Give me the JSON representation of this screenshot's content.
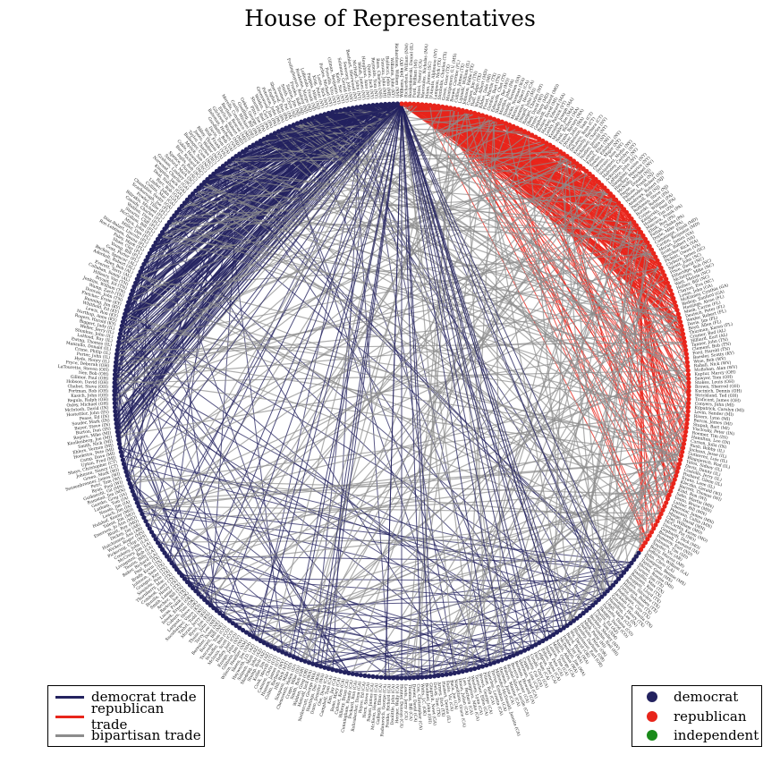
{
  "title": "House of Representatives",
  "colors": {
    "democrat": "#23225f",
    "republican": "#e8251b",
    "independent": "#1a8a1a",
    "bipartisan": "#8c8c8c",
    "label": "#222222"
  },
  "legend_trades": [
    {
      "label": "democrat trade",
      "color": "#23225f"
    },
    {
      "label": "republican trade",
      "color": "#e8251b"
    },
    {
      "label": "bipartisan trade",
      "color": "#8c8c8c"
    }
  ],
  "legend_parties": [
    {
      "label": "democrat",
      "color": "#23225f"
    },
    {
      "label": "republican",
      "color": "#e8251b"
    },
    {
      "label": "independent",
      "color": "#1a8a1a"
    }
  ],
  "node_labels": [
    "Williams, John (KY)",
    "Richardson, William (NM)",
    "Roskenkowski, Daniel (IL)",
    "Ford, William (MI)",
    "Pelosi, Nancy (CA)",
    "Mavroules, Nicholas (MA)",
    "Mann, James (SC)",
    "D'Amato, Alphonse (NY)",
    "Lampson, Nick (TX)",
    "Stenholm, Charles (TX)",
    "Green, Gene (TX)",
    "Montgomery, G.V. (MS)",
    "Brown, Corrine (FL)",
    "Collins, James (TX)",
    "Lipinski, William (IL)",
    "Johnson, Eddie (TX)",
    "Cooper, Jim (TN)",
    "Hall, Ralph (TX)",
    "Wynn, Albert (MD)",
    "Kildee, Dale (MI)",
    "Frost, Martin (TX)",
    "Gordon, Bart (TN)",
    "Edwards, Chet (TX)",
    "Skelton, Ike (MO)",
    "Murtha, John (PA)",
    "Sisisky, Norman (VA)",
    "Dicks, Norman (WA)",
    "Matsui, Robert (CA)",
    "Waxman, Henry (CA)",
    "Dingell, John (MI)",
    "Rangel, Charles (NY)",
    "Obey, David (WI)",
    "Hoyer, Steny (MD)",
    "Gephardt, Richard (MO)",
    "Bonior, David (MI)",
    "Markey, Edward (MA)",
    "Leahy, Patrick (VT)",
    "Kennedy, Joseph (MA)",
    "Moakley, Joe (MA)",
    "Neal, Richard (MA)",
    "Frank, Barney (MA)",
    "Olver, John (MA)",
    "Gejdenson, Sam (CT)",
    "DeLauro, Rosa (CT)",
    "Kennelly, Barbara (CT)",
    "Schumer, Charles (NY)",
    "Nadler, Jerrold (NY)",
    "Lowey, Nita (NY)",
    "Engel, Eliot (NY)",
    "Towns, Edolphus (NY)",
    "Owens, Major (NY)",
    "Serrano, Jose (NY)",
    "Velazquez, Nydia (NY)",
    "Maloney, Carolyn (NY)",
    "Ackerman, Gary (NY)",
    "LaFalce, John (NY)",
    "Slaughter, Louise (NY)",
    "Hinchey, Maurice (NY)",
    "McNulty, Michael (NY)",
    "Payne, Donald (NJ)",
    "Pallone, Frank (NJ)",
    "Menendez, Robert (NJ)",
    "Andrews, Robert (NJ)",
    "Pascrell, Bill (NJ)",
    "Rothman, Steve (NJ)",
    "Borski, Robert (PA)",
    "Coyne, William (PA)",
    "Kanjorski, Paul (PA)",
    "Holden, Tim (PA)",
    "Mascara, Frank (PA)",
    "Klink, Ron (PA)",
    "Fattah, Chaka (PA)",
    "Doyle, Mike (PA)",
    "Cummings, Elijah (MD)",
    "Cardin, Benjamin (MD)",
    "Moran, James (VA)",
    "Scott, Robert (VA)",
    "Boucher, Rick (VA)",
    "Pickett, Owen (VA)",
    "Clyburn, James (SC)",
    "Spratt, John (SC)",
    "Price, David (NC)",
    "Etheridge, Bob (NC)",
    "McIntyre, Mike (NC)",
    "Watt, Melvin (NC)",
    "Hefner, Bill (NC)",
    "Clayton, Eva (NC)",
    "Lewis, John (GA)",
    "McKinney, Cynthia (GA)",
    "Bishop, Sanford (GA)",
    "Hastings, Alcee (FL)",
    "Meek, Carrie (FL)",
    "Deutsch, Peter (FL)",
    "Wexler, Robert (FL)",
    "Davis, Jim (FL)",
    "Boyd, Allen (FL)",
    "Thurman, Karen (FL)",
    "Cramer, Bud (AL)",
    "Hilliard, Earl (AL)",
    "Tanner, John (TN)",
    "Clement, Bob (TN)",
    "Ford, Harold (TN)",
    "Baesler, Scotty (KY)",
    "Wise, Bob (WV)",
    "Rahall, Nick (WV)",
    "Mollohan, Alan (WV)",
    "Kaptur, Marcy (OH)",
    "Sawyer, Tom (OH)",
    "Stokes, Louis (OH)",
    "Brown, Sherrod (OH)",
    "Kucinich, Dennis (OH)",
    "Strickland, Ted (OH)",
    "Traficant, James (OH)",
    "Conyers, John (MI)",
    "Kilpatrick, Carolyn (MI)",
    "Levin, Sander (MI)",
    "Rivers, Lynn (MI)",
    "Barcia, James (MI)",
    "Stupak, Bart (MI)",
    "Visclosky, Peter (IN)",
    "Roemer, Tim (IN)",
    "Hamilton, Lee (IN)",
    "Carson, Julia (IN)",
    "Rush, Bobby (IL)",
    "Jackson, Jesse (IL)",
    "Gutierrez, Luis (IL)",
    "Blagojevich, Rod (IL)",
    "Yates, Sidney (IL)",
    "Davis, Danny (IL)",
    "Costello, Jerry (IL)",
    "Poshard, Glenn (IL)",
    "Evans, Lane (IL)",
    "Kleczka, Gerald (WI)",
    "Barrett, Thomas (WI)",
    "Kind, Ron (WI)",
    "Sabo, Martin (MN)",
    "Vento, Bruce (MN)",
    "Luther, Bill (MN)",
    "Oberstar, James (MN)",
    "Peterson, Collin (MN)",
    "Minge, David (MN)",
    "Clay, William (MO)",
    "McCarthy, Karen (MO)",
    "Danner, Pat (MO)",
    "Gephardt, Dick (MO)",
    "Boswell, Leonard (IA)",
    "Pomeroy, Earl (ND)",
    "Johnson, Tim (SD)",
    "Snyder, Vic (AR)",
    "Berry, Marion (AR)",
    "Jefferson, William (LA)",
    "John, Chris (LA)",
    "Thompson, Bennie (MS)",
    "Taylor, Gene (MS)",
    "Shows, Ronnie (MS)",
    "Turner, Jim (TX)",
    "Sandlin, Max (TX)",
    "Bentsen, Ken (TX)",
    "Doggett, Lloyd (TX)",
    "Reyes, Silvestre (TX)",
    "Hinojosa, Ruben (TX)",
    "Ortiz, Solomon (TX)",
    "Rodriguez, Ciro (TX)",
    "Jackson Lee, Sheila (TX)",
    "Gonzalez, Henry (TX)",
    "Hamilton, Lee (IN)",
    "Udall, Mark (CO)",
    "DeGette, Diana (CO)",
    "Skaggs, David (CO)",
    "Pastor, Ed (AZ)",
    "Udall, Tom (NM)",
    "Berkley, Shelley (NV)",
    "Abercrombie, Neil (HI)",
    "Mink, Patsy (HI)",
    "DeFazio, Peter (OR)",
    "Hooley, Darlene (OR)",
    "Blumenauer, Earl (OR)",
    "Wu, David (OR)",
    "Baird, Brian (WA)",
    "Inslee, Jay (WA)",
    "McDermott, Jim (WA)",
    "Smith, Adam (WA)",
    "Miller, George (CA)",
    "Lantos, Tom (CA)",
    "Stark, Pete (CA)",
    "Eshoo, Anna (CA)",
    "Lofgren, Zoe (CA)",
    "Farr, Sam (CA)",
    "Condit, Gary (CA)",
    "Dooley, Cal (CA)",
    "Capps, Lois (CA)",
    "Sherman, Brad (CA)",
    "Berman, Howard (CA)",
    "Becerra, Xavier (CA)",
    "Roybal-Allard, Lucille (CA)",
    "Waters, Maxine (CA)",
    "Harman, Jane (CA)",
    "Millender-McDonald, Juanita (CA)",
    "Torres, Esteban (CA)",
    "Sanchez, Loretta (CA)",
    "Filner, Bob (CA)",
    "Brown, George (CA)",
    "Tauscher, Ellen (CA)",
    "Woolsey, Lynn (CA)",
    "Thompson, Mike (CA)",
    "Lee, Barbara (CA)",
    "Dixon, Julian (CA)",
    "Napolitano, Grace (CA)",
    "Baca, Joe (CA)",
    "Fazio, Vic (CA)",
    "Hastert, Dennis (IL)",
    "Armey, Dick (TX)",
    "DeLay, Tom (TX)",
    "Gingrich, Newt (GA)",
    "Boehner, John (OH)",
    "Watts, J.C. (OK)",
    "Cox, Christopher (CA)",
    "Dreier, David (CA)",
    "Thomas, Bill (CA)",
    "Lewis, Jerry (CA)",
    "Hunter, Duncan (CA)",
    "Herger, Wally (CA)",
    "Doolittle, John (CA)",
    "Pombo, Richard (CA)",
    "Radanovich, George (CA)",
    "Gallegly, Elton (CA)",
    "McKeon, Howard (CA)",
    "Rogan, James (CA)",
    "Horn, Steve (CA)",
    "Royce, Ed (CA)",
    "Rohrabacher, Dana (CA)",
    "Packard, Ron (CA)",
    "Cunningham, Randy (CA)",
    "Bilbray, Brian (CA)",
    "Calvert, Ken (CA)",
    "Bono, Mary (CA)",
    "Kim, Jay (CA)",
    "Campbell, Tom (CA)",
    "Ose, Doug (CA)",
    "Dunn, Jennifer (WA)",
    "Hastings, Doc (WA)",
    "Nethercutt, George (WA)",
    "Metcalf, Jack (WA)",
    "Walden, Greg (OR)",
    "Smith, Bob (OR)",
    "Crapo, Mike (ID)",
    "Chenoweth, Helen (ID)",
    "Simpson, Mike (ID)",
    "Hill, Rick (MT)",
    "Cubin, Barbara (WY)",
    "Hansen, James (UT)",
    "Cannon, Chris (UT)",
    "Cook, Merrill (UT)",
    "Kolbe, Jim (AZ)",
    "Stump, Bob (AZ)",
    "Shadegg, John (AZ)",
    "Salmon, Matt (AZ)",
    "Hayworth, J.D. (AZ)",
    "Skeen, Joe (NM)",
    "Wilson, Heather (NM)",
    "Gibbons, Jim (NV)",
    "Ensign, John (NV)",
    "Hefley, Joel (CO)",
    "McInnis, Scott (CO)",
    "Schaffer, Bob (CO)",
    "Tancredo, Tom (CO)",
    "Barrett, Bill (NE)",
    "Bereuter, Doug (NE)",
    "Terry, Lee (NE)",
    "Thune, John (SD)",
    "Ryun, Jim (KS)",
    "Moran, Jerry (KS)",
    "Tiahrt, Todd (KS)",
    "Snowbarger, Vince (KS)",
    "Largent, Steve (OK)",
    "Coburn, Tom (OK)",
    "Istook, Ernest (OK)",
    "Lucas, Frank (OK)",
    "Barton, Joe (TX)",
    "Archer, Bill (TX)",
    "Smith, Lamar (TX)",
    "Bonilla, Henry (TX)",
    "Combest, Larry (TX)",
    "Thornberry, Mac (TX)",
    "Sessions, Pete (TX)",
    "Granger, Kay (TX)",
    "Johnson, Sam (TX)",
    "Brady, Kevin (TX)",
    "Paul, Ron (TX)",
    "Baker, Richard (LA)",
    "Tauzin, Billy (LA)",
    "Livingston, Bob (LA)",
    "McCrery, Jim (LA)",
    "Cooksey, John (LA)",
    "Pickering, Chip (MS)",
    "Wicker, Roger (MS)",
    "Hutchinson, Asa (AR)",
    "Dickey, Jay (AR)",
    "Blunt, Roy (MO)",
    "Emerson, Jo Ann (MO)",
    "Talent, Jim (MO)",
    "Hulshof, Kenny (MO)",
    "Leach, Jim (IA)",
    "Nussle, Jim (IA)",
    "Latham, Tom (IA)",
    "Ganske, Greg (IA)",
    "Ramstad, Jim (MN)",
    "Gutknecht, Gil (MN)",
    "Ryan, Paul (WI)",
    "Petri, Tom (WI)",
    "Sensenbrenner, James (WI)",
    "Green, Mark (WI)",
    "Johnson, Nancy (CT)",
    "Shays, Christopher (CT)",
    "Upton, Fred (MI)",
    "Camp, Dave (MI)",
    "Hoekstra, Pete (MI)",
    "Ehlers, Vernon (MI)",
    "Smith, Nick (MI)",
    "Knollenberg, Joe (MI)",
    "Rogers, Mike (MI)",
    "Burton, Dan (IN)",
    "Buyer, Steve (IN)",
    "Souder, Mark (IN)",
    "Pease, Ed (IN)",
    "Hostettler, John (IN)",
    "McIntosh, David (IN)",
    "Oxley, Michael (OH)",
    "Regula, Ralph (OH)",
    "Kasich, John (OH)",
    "Portman, Rob (OH)",
    "Chabot, Steve (OH)",
    "Hobson, David (OH)",
    "Gillmor, Paul (OH)",
    "Ney, Bob (OH)",
    "LaTourette, Steven (OH)",
    "Pryce, Deborah (OH)",
    "Hyde, Henry (IL)",
    "Porter, John (IL)",
    "Crane, Philip (IL)",
    "Manzullo, Donald (IL)",
    "Ewing, Thomas (IL)",
    "LaHood, Ray (IL)",
    "Shimkus, John (IL)",
    "Weller, Jerry (IL)",
    "Biggert, Judy (IL)",
    "Rogers, Harold (KY)",
    "Northup, Anne (KY)",
    "Lewis, Ron (KY)",
    "Whitfield, Ed (KY)",
    "Bunning, Jim (KY)",
    "Fletcher, Ernie (KY)",
    "Duncan, John (TN)",
    "Wamp, Zach (TN)",
    "Jenkins, William (TN)",
    "Bryant, Ed (TN)",
    "Hilleary, Van (TN)",
    "Callahan, Sonny (AL)",
    "Everett, Terry (AL)",
    "Riley, Bob (AL)",
    "Aderholt, Robert (AL)",
    "Bachus, Spencer (AL)",
    "Goss, Porter (FL)",
    "Young, Bill (FL)",
    "Shaw, Clay (FL)",
    "Foley, Mark (FL)",
    "Ros-Lehtinen, Ileana (FL)",
    "Diaz-Balart, Lincoln (FL)",
    "Miller, Dan (FL)",
    "Mica, John (FL)",
    "McCollum, Bill (FL)",
    "Stearns, Cliff (FL)",
    "Weldon, Dave (FL)",
    "Canady, Charles (FL)",
    "Bilirakis, Michael (FL)",
    "Fowler, Tillie (FL)",
    "Scarborough, Joe (FL)",
    "Chambliss, Saxby (GA)",
    "Collins, Mac (GA)",
    "Linder, John (GA)",
    "Barr, Bob (GA)",
    "Deal, Nathan (GA)",
    "Kingston, Jack (GA)",
    "Norwood, Charlie (GA)",
    "Graham, Lindsey (SC)",
    "Sanford, Mark (SC)",
    "Spence, Floyd (SC)",
    "Inglis, Bob (SC)",
    "Burr, Richard (NC)",
    "Coble, Howard (NC)",
    "Myrick, Sue (NC)",
    "Ballenger, Cass (NC)",
    "Taylor, Charles (NC)",
    "Jones, Walter (NC)",
    "Bliley, Thomas (VA)",
    "Wolf, Frank (VA)",
    "Davis, Tom (VA)",
    "Goodlatte, Bob (VA)",
    "Bateman, Herbert (VA)",
    "Gilchrest, Wayne (MD)",
    "Ehrlich, Robert (MD)",
    "Bartlett, Roscoe (MD)",
    "Morella, Constance (MD)",
    "Castle, Michael (DE)",
    "Goodling, Bill (PA)",
    "Gekas, George (PA)",
    "Pitts, Joe (PA)",
    "Shuster, Bud (PA)",
    "Weldon, Curt (PA)",
    "Greenwood, Jim (PA)",
    "Peterson, John (PA)",
    "English, Phil (PA)",
    "Sherwood, Don (PA)",
    "Toomey, Pat (PA)",
    "Smith, Chris (NJ)",
    "Saxton, Jim (NJ)",
    "Franks, Bob (NJ)",
    "Frelinghuysen, Rodney (NJ)",
    "Roukema, Marge (NJ)",
    "LoBiondo, Frank (NJ)",
    "Pappas, Mike (NJ)",
    "King, Peter (NY)",
    "Lazio, Rick (NY)",
    "Forbes, Michael (NY)",
    "Fossella, Vito (NY)",
    "Gilman, Benjamin (NY)",
    "Kelly, Sue (NY)",
    "Solomon, Gerald (NY)",
    "Sweeney, John (NY)",
    "Boehlert, Sherwood (NY)",
    "McHugh, John (NY)",
    "Walsh, James (NY)",
    "Houghton, Amo (NY)",
    "Quinn, Jack (NY)",
    "Reynolds, Tom (NY)",
    "Bass, Charles (NH)",
    "Sununu, John (NH)",
    "Baldacci, John (ME)"
  ]
}
